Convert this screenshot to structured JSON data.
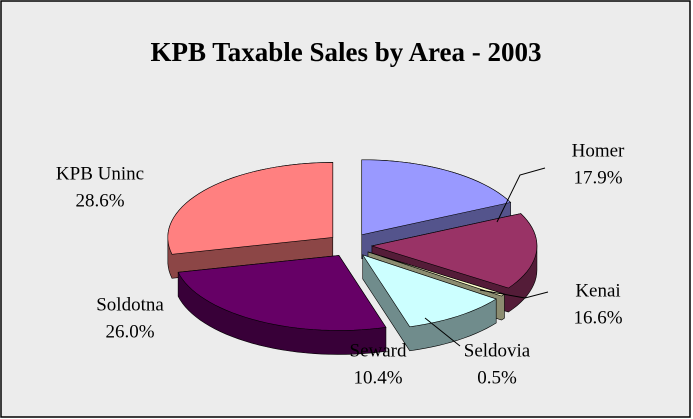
{
  "chart_data": {
    "type": "pie",
    "title": "KPB Taxable Sales by Area - 2003",
    "categories": [
      "Homer",
      "Kenai",
      "Seldovia",
      "Seward",
      "Soldotna",
      "KPB Uninc"
    ],
    "values": [
      17.9,
      16.6,
      0.5,
      10.4,
      26.0,
      28.6
    ],
    "value_labels": [
      "17.9%",
      "16.6%",
      "0.5%",
      "10.4%",
      "26.0%",
      "28.6%"
    ],
    "colors": [
      "#9999ff",
      "#993366",
      "#ffffcc",
      "#ccffff",
      "#660066",
      "#ff8080"
    ]
  }
}
